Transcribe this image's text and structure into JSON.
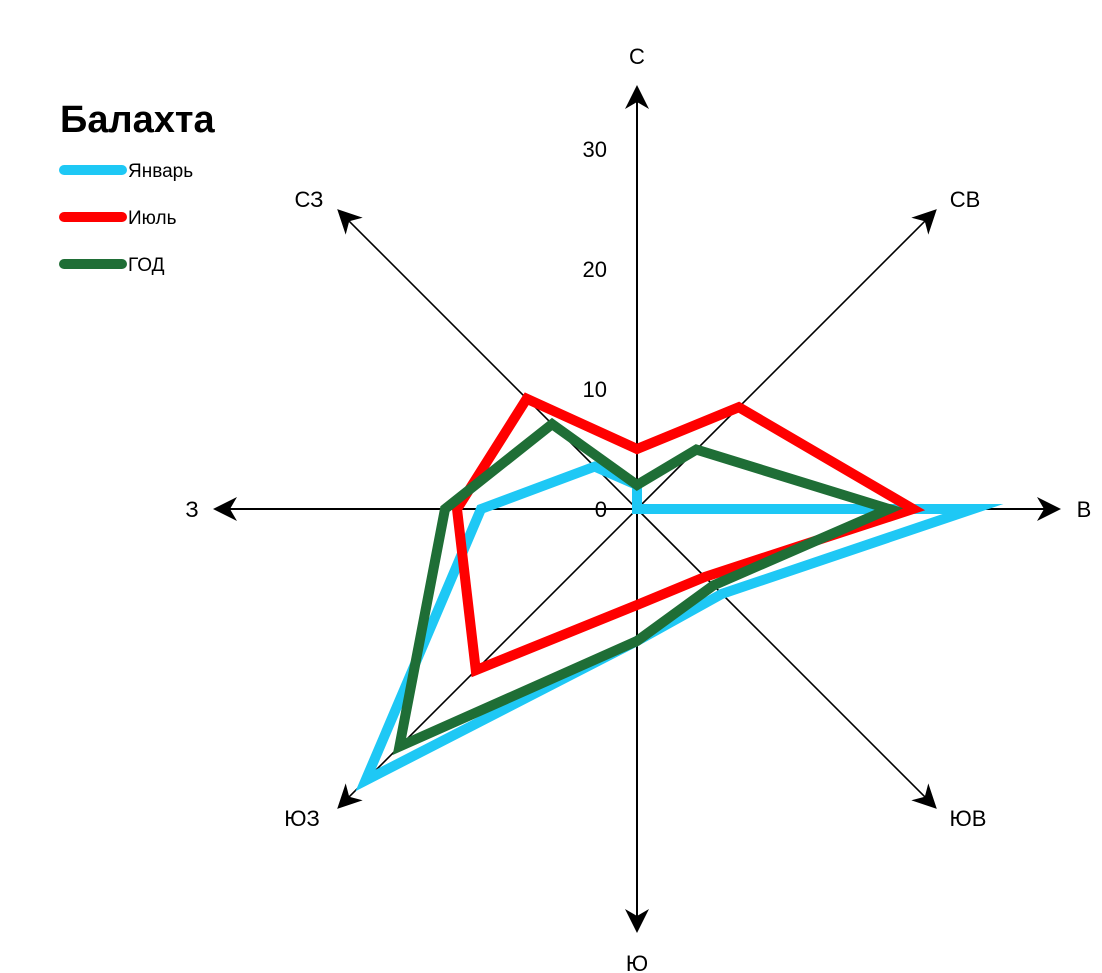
{
  "chart_data": {
    "type": "radar",
    "title": "Балахта",
    "directions": [
      "С",
      "СВ",
      "В",
      "ЮВ",
      "Ю",
      "ЮЗ",
      "З",
      "СЗ"
    ],
    "ticks": [
      0,
      10,
      20,
      30
    ],
    "rlim": [
      0,
      30
    ],
    "grid": false,
    "legend_position": "top-left",
    "series": [
      {
        "name": "Январь",
        "color": "#1ec8f5",
        "values": [
          2,
          0,
          28,
          10,
          11,
          32,
          13,
          5
        ]
      },
      {
        "name": "Июль",
        "color": "#ff0000",
        "values": [
          5,
          12,
          23,
          8,
          8,
          19,
          15,
          13
        ]
      },
      {
        "name": "ГОД",
        "color": "#1f6e36",
        "values": [
          2,
          7,
          21,
          9,
          11,
          28,
          16,
          10
        ]
      }
    ]
  }
}
